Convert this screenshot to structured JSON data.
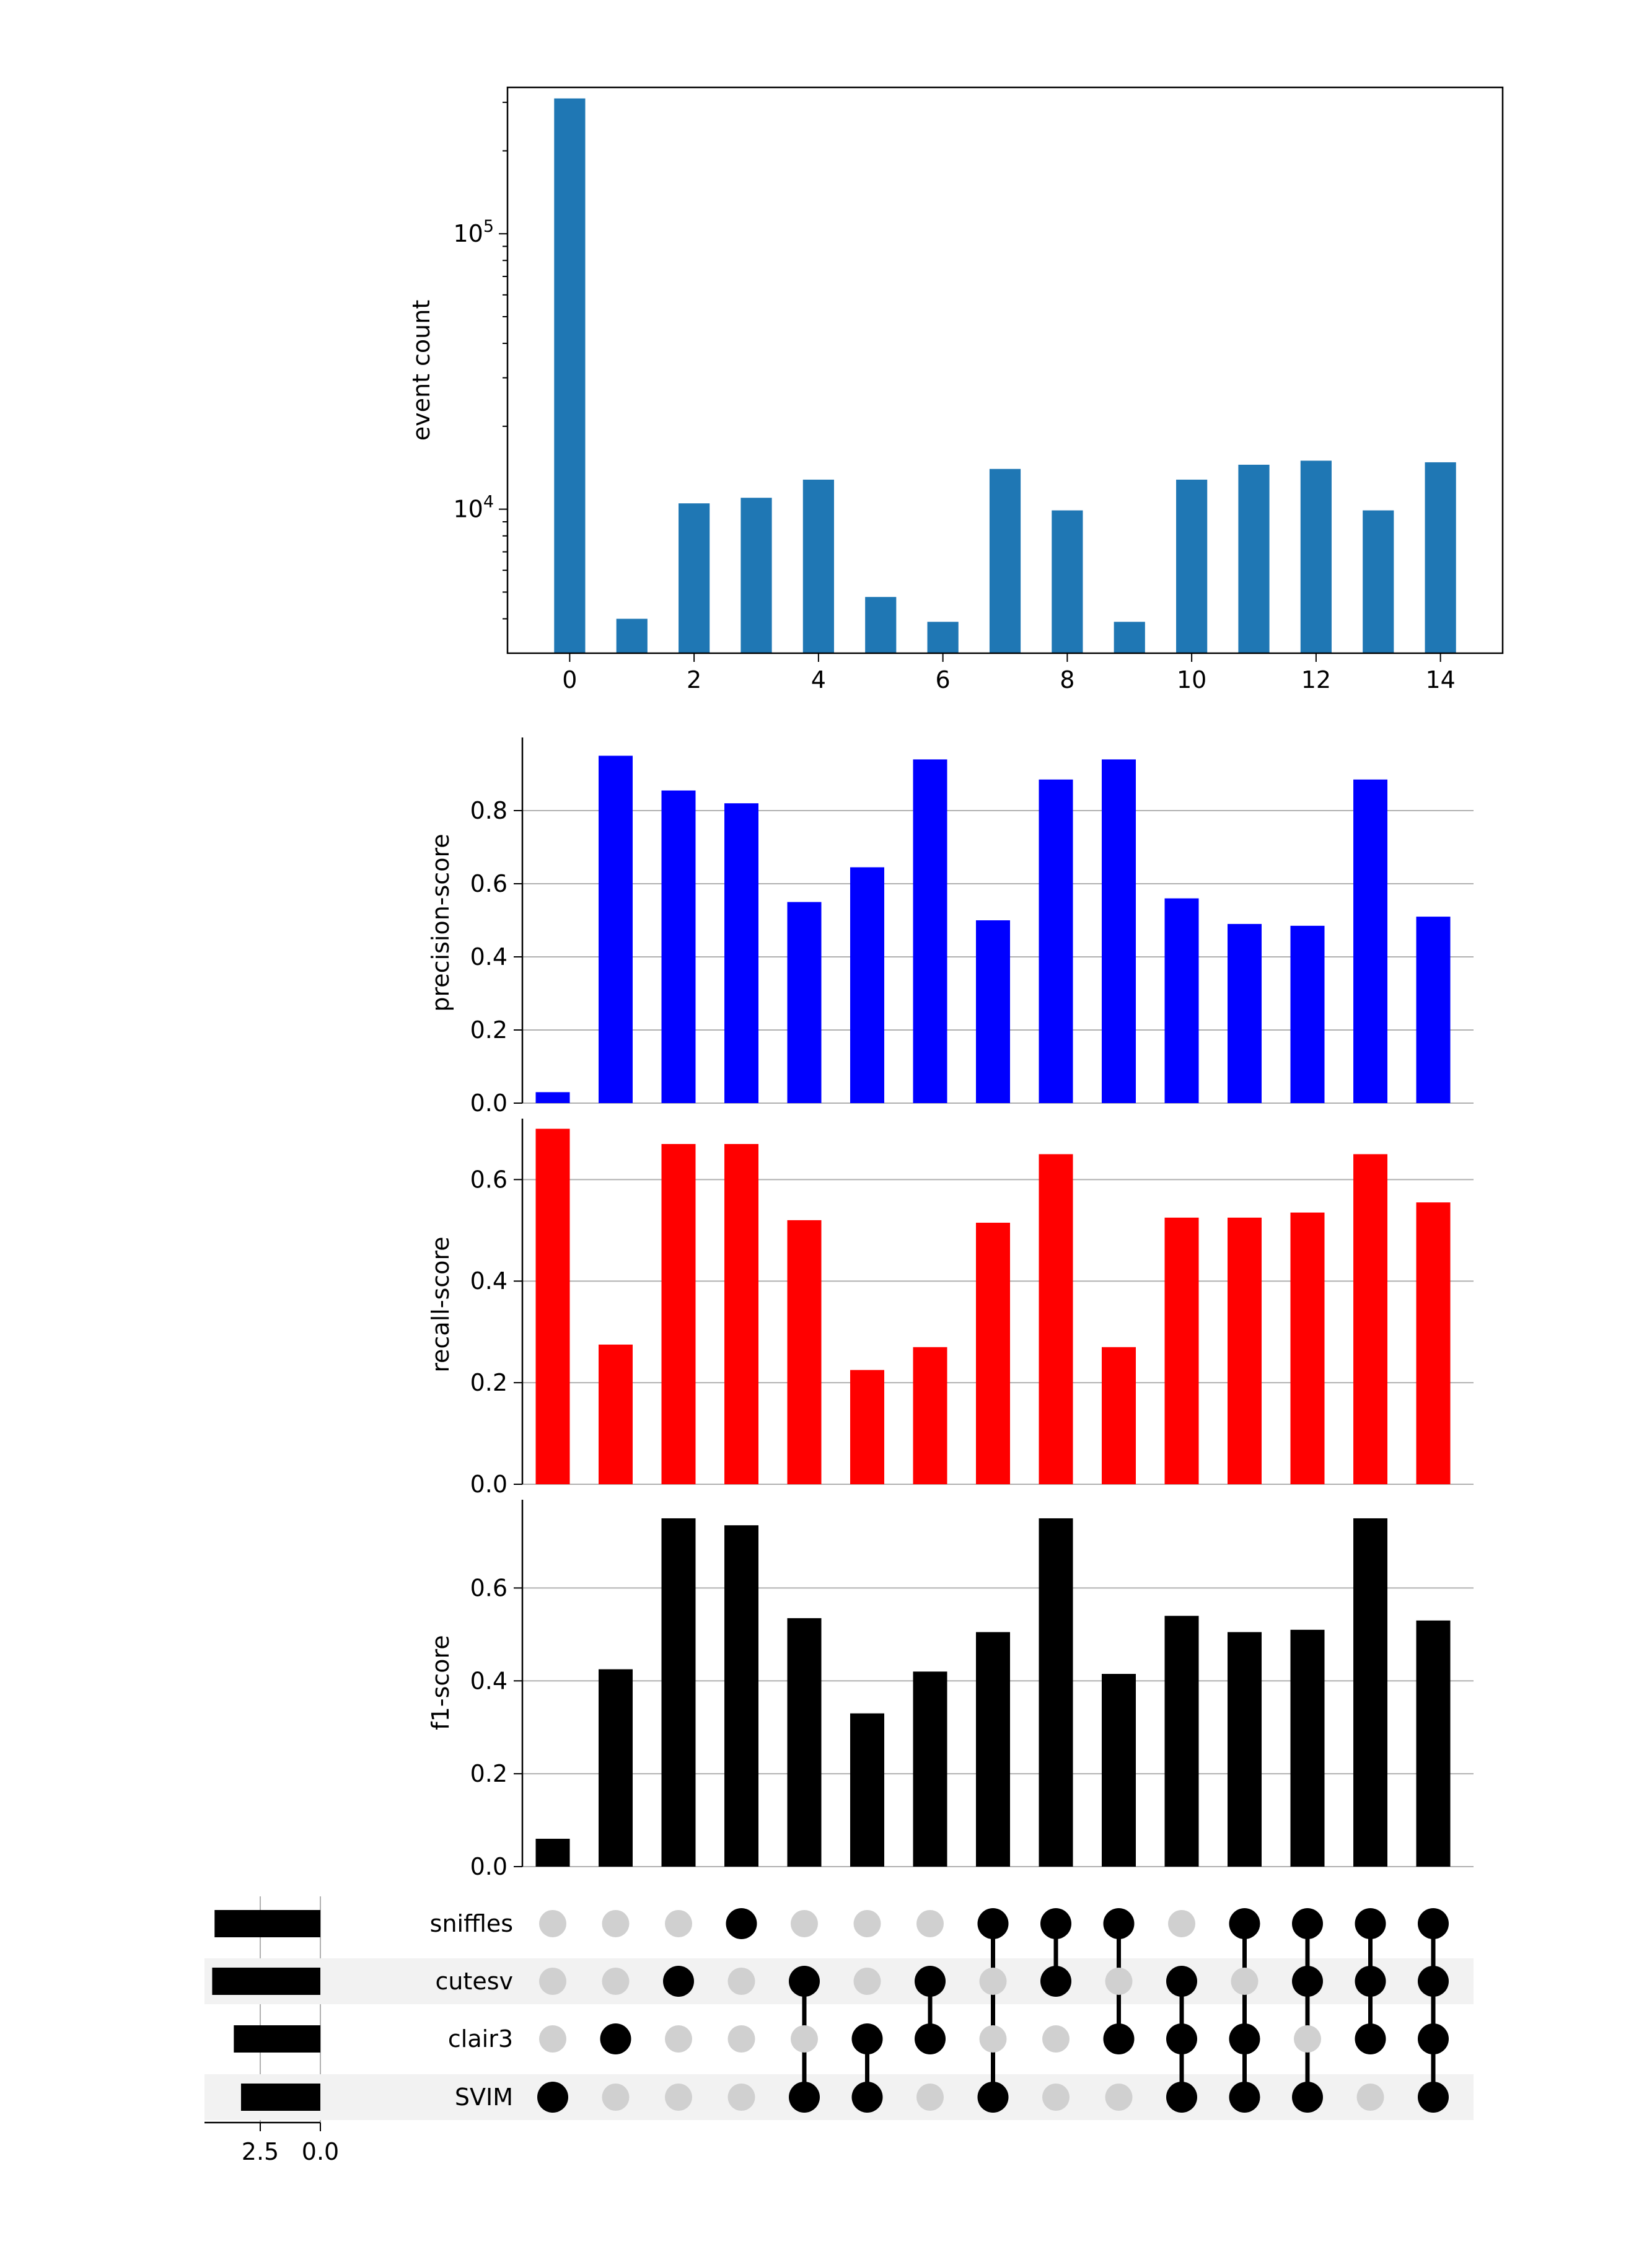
{
  "colors": {
    "event_bars": "#1f77b4",
    "precision_bars": "#0000ff",
    "recall_bars": "#ff0000",
    "f1_bars": "#000000",
    "grid": "#b0b0b0",
    "dot_active": "#000000",
    "dot_inactive": "#d0d0d0",
    "stripe": "#f2f2f2"
  },
  "chart_data": [
    {
      "type": "bar",
      "panel": "event-count",
      "x": [
        0,
        1,
        2,
        3,
        4,
        5,
        6,
        7,
        8,
        9,
        10,
        11,
        12,
        13,
        14
      ],
      "values": [
        310000,
        4000,
        10500,
        11000,
        12800,
        4800,
        3900,
        14000,
        9900,
        3900,
        12800,
        14500,
        15000,
        9900,
        14800
      ],
      "ylabel": "event count",
      "yscale": "log",
      "ylim": [
        3000,
        340000
      ],
      "yticks": [
        {
          "value": 10000,
          "base": "10",
          "exp": "4"
        },
        {
          "value": 100000,
          "base": "10",
          "exp": "5"
        }
      ],
      "xlim": [
        -1,
        15
      ],
      "xticks": [
        "0",
        "2",
        "4",
        "6",
        "8",
        "10",
        "12",
        "14"
      ],
      "grid": false,
      "frame": "box"
    },
    {
      "type": "bar",
      "panel": "precision",
      "values": [
        0.03,
        0.95,
        0.855,
        0.82,
        0.55,
        0.645,
        0.94,
        0.5,
        0.885,
        0.94,
        0.56,
        0.49,
        0.485,
        0.885,
        0.51
      ],
      "ylabel": "precision-score",
      "ylim": [
        0,
        1.0
      ],
      "yticks": [
        "0.0",
        "0.2",
        "0.4",
        "0.6",
        "0.8"
      ],
      "grid": true
    },
    {
      "type": "bar",
      "panel": "recall",
      "values": [
        0.7,
        0.275,
        0.67,
        0.67,
        0.52,
        0.225,
        0.27,
        0.515,
        0.65,
        0.27,
        0.525,
        0.525,
        0.535,
        0.65,
        0.555
      ],
      "ylabel": "recall-score",
      "ylim": [
        0,
        0.72
      ],
      "yticks": [
        "0.0",
        "0.2",
        "0.4",
        "0.6"
      ],
      "grid": true
    },
    {
      "type": "bar",
      "panel": "f1",
      "values": [
        0.06,
        0.425,
        0.75,
        0.735,
        0.535,
        0.33,
        0.42,
        0.505,
        0.75,
        0.415,
        0.54,
        0.505,
        0.51,
        0.75,
        0.53
      ],
      "ylabel": "f1-score",
      "ylim": [
        0,
        0.79
      ],
      "yticks": [
        "0.0",
        "0.2",
        "0.4",
        "0.6"
      ],
      "grid": true
    },
    {
      "type": "upset-matrix",
      "sets": [
        "sniffles",
        "cutesv",
        "clair3",
        "SVIM"
      ],
      "membership": [
        [
          0,
          0,
          0,
          1
        ],
        [
          0,
          0,
          1,
          0
        ],
        [
          0,
          1,
          0,
          0
        ],
        [
          1,
          0,
          0,
          0
        ],
        [
          0,
          1,
          0,
          1
        ],
        [
          0,
          0,
          1,
          1
        ],
        [
          0,
          1,
          1,
          0
        ],
        [
          1,
          0,
          0,
          1
        ],
        [
          1,
          1,
          0,
          0
        ],
        [
          1,
          0,
          1,
          0
        ],
        [
          0,
          1,
          1,
          1
        ],
        [
          1,
          0,
          1,
          1
        ],
        [
          1,
          1,
          0,
          1
        ],
        [
          1,
          1,
          1,
          0
        ],
        [
          1,
          1,
          1,
          1
        ]
      ]
    },
    {
      "type": "bar",
      "panel": "set-size",
      "orientation": "horizontal",
      "categories": [
        "sniffles",
        "cutesv",
        "clair3",
        "SVIM"
      ],
      "values": [
        4.4,
        4.5,
        3.6,
        3.3
      ],
      "xlim": [
        0,
        5.0
      ],
      "xticks": [
        {
          "value": 2.5,
          "label": "2.5"
        },
        {
          "value": 0,
          "label": "0.0"
        }
      ],
      "inverted": true,
      "grid": true
    }
  ]
}
